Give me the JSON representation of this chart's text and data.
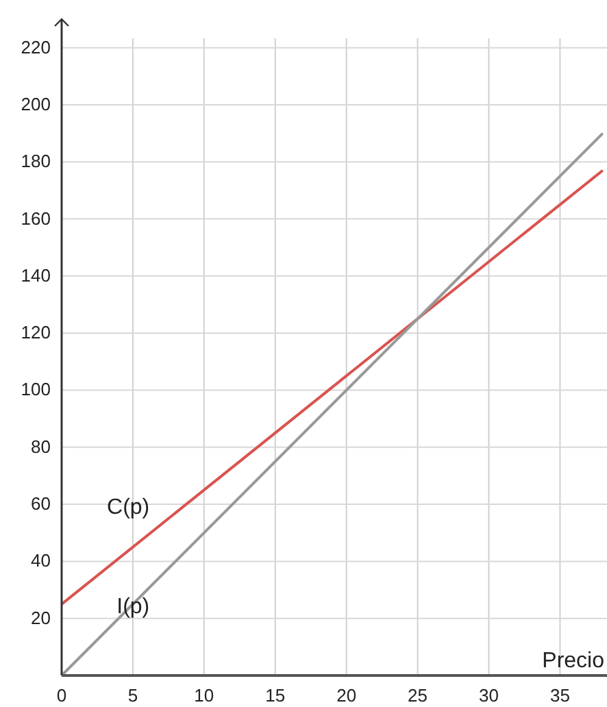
{
  "chart_data": {
    "type": "line",
    "xlabel": "Precio",
    "x": [
      0,
      38
    ],
    "series": [
      {
        "name": "C(p)",
        "color": "#d9534f",
        "values": [
          25,
          177
        ]
      },
      {
        "name": "I(p)",
        "color": "#999999",
        "values": [
          0,
          190
        ]
      }
    ],
    "xlim": [
      0,
      38.3
    ],
    "xticks": [
      0,
      5,
      10,
      15,
      20,
      25,
      30,
      35
    ],
    "ylim": [
      0,
      230
    ],
    "yticks": [
      {
        "value": 0,
        "label": null
      },
      20,
      40,
      60,
      80,
      100,
      120,
      140,
      160,
      180,
      200,
      220
    ],
    "grid": true,
    "marker": "none",
    "line_style": "solid"
  }
}
